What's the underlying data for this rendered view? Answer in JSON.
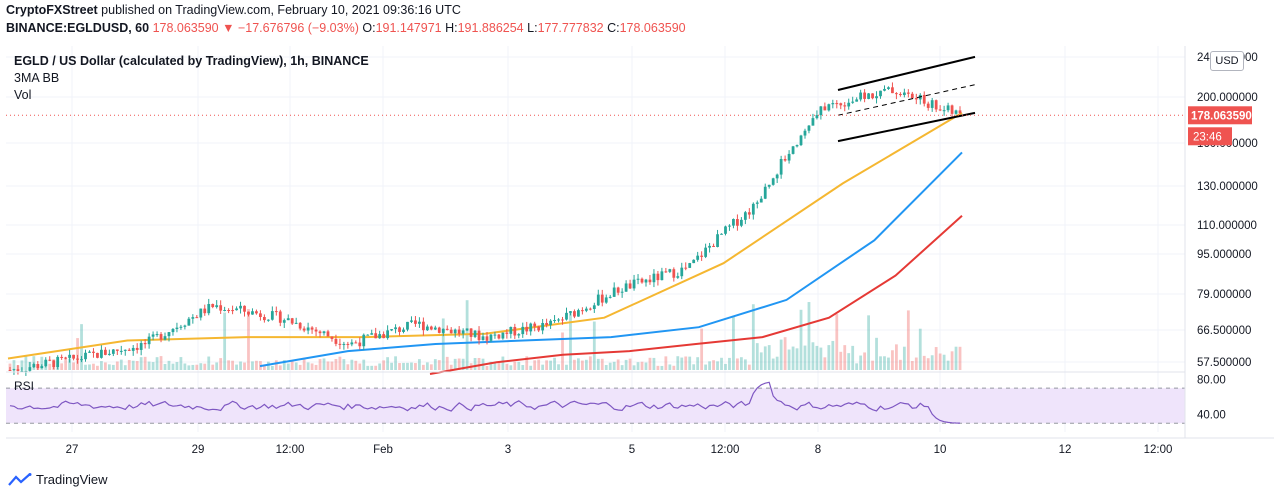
{
  "publish_bar": {
    "author": "CryptoFXStreet",
    "text": " published on TradingView.com, February 10, 2021 09:36:16 UTC"
  },
  "ohlc": {
    "symbol": "BINANCE:EGLDUSD, 60",
    "price": "178.063590",
    "change": "▼ −17.676796 (−9.03%)",
    "o_label": "O:",
    "o": "191.147971",
    "h_label": "H:",
    "h": "191.886254",
    "l_label": "L:",
    "l": "177.777832",
    "c_label": "C:",
    "c": "178.063590"
  },
  "legend": {
    "title": "EGLD / US Dollar (calculated by TradingView), 1h, BINANCE",
    "indicator1": "3MA BB",
    "indicator2": "Vol"
  },
  "currency_button": "USD",
  "rsi_label": "RSI",
  "last_price_tag": "178.063590",
  "countdown_tag": "23:46",
  "branding": "TradingView",
  "colors": {
    "up": "#26a69a",
    "down": "#ef5350",
    "ma_short": "#f5b731",
    "ma_mid": "#2196f3",
    "ma_long": "#e53935",
    "rsi_line": "#7e57c2",
    "rsi_band": "#efe4fb",
    "channel": "#000000"
  },
  "chart_data": {
    "type": "candlestick",
    "title": "EGLD / US Dollar (calculated by TradingView), 1h, BINANCE",
    "xlabel": "",
    "ylabel": "",
    "y_scale": "log",
    "ylim": [
      55,
      245
    ],
    "y_ticks": [
      "240.000000",
      "200.000000",
      "160.000000",
      "130.000000",
      "110.000000",
      "95.000000",
      "79.000000",
      "66.500000",
      "57.500000"
    ],
    "x_ticks": [
      "27",
      "29",
      "12:00",
      "Feb",
      "3",
      "5",
      "12:00",
      "8",
      "10",
      "12",
      "12:00"
    ],
    "price_path": [
      {
        "x": "Jan 26",
        "y": 55
      },
      {
        "x": "Jan 28",
        "y": 58
      },
      {
        "x": "Jan 29",
        "y": 62
      },
      {
        "x": "Jan 30",
        "y": 74
      },
      {
        "x": "Jan 31",
        "y": 70
      },
      {
        "x": "Feb 1",
        "y": 62
      },
      {
        "x": "Feb 2",
        "y": 68
      },
      {
        "x": "Feb 3",
        "y": 64
      },
      {
        "x": "Feb 4",
        "y": 68
      },
      {
        "x": "Feb 5",
        "y": 80
      },
      {
        "x": "Feb 6",
        "y": 88
      },
      {
        "x": "Feb 7",
        "y": 118
      },
      {
        "x": "Feb 8",
        "y": 185
      },
      {
        "x": "Feb 9",
        "y": 200
      },
      {
        "x": "Feb 10",
        "y": 178
      }
    ],
    "series": [
      {
        "values": [
          58,
          63,
          64,
          64,
          65,
          70,
          90,
          130,
          180
        ]
      },
      {
        "values": [
          56,
          60,
          62,
          63,
          64,
          67,
          76,
          100,
          150
        ]
      },
      {
        "values": [
          54,
          57,
          59,
          60,
          62,
          64,
          70,
          85,
          112
        ]
      }
    ],
    "rsi": {
      "levels": [
        30,
        70
      ],
      "ticks": [
        "80.00",
        "40.00"
      ],
      "last": 30
    }
  }
}
